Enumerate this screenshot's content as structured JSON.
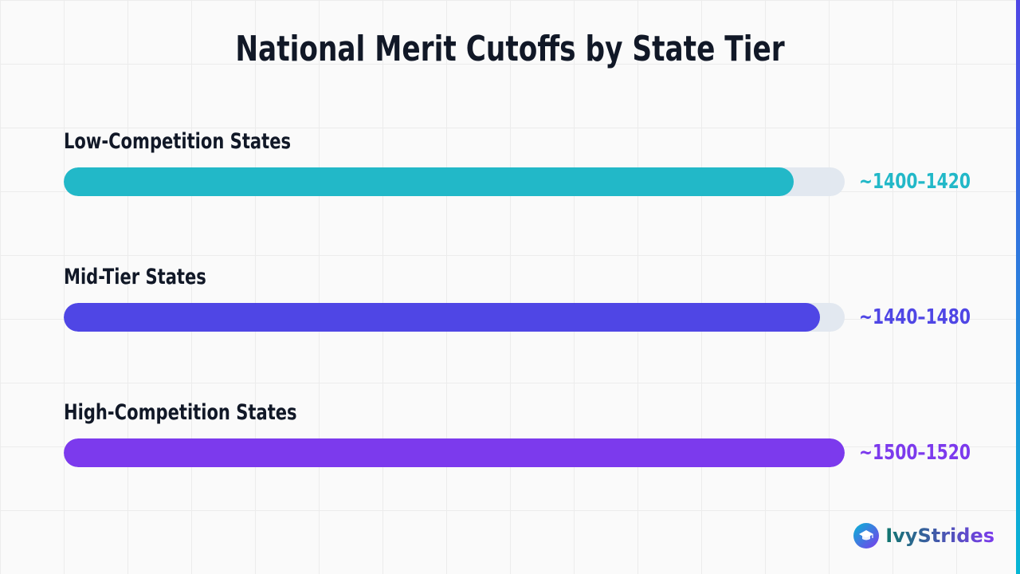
{
  "chart_data": {
    "type": "bar",
    "title": "National Merit Cutoffs by State Tier",
    "categories": [
      "Low-Competition States",
      "Mid-Tier States",
      "High-Competition States"
    ],
    "value_labels": [
      "~1400–1420",
      "~1440–1480",
      "~1500–1520"
    ],
    "bar_fill_fractions": [
      0.935,
      0.968,
      1.0
    ],
    "colors": [
      "#22b8c8",
      "#4f46e5",
      "#7c3aed"
    ],
    "track_color": "#e2e8f0",
    "grid": true,
    "legend": "none"
  },
  "brand": {
    "name": "IvyStrides",
    "icon": "graduation-cap-icon"
  }
}
